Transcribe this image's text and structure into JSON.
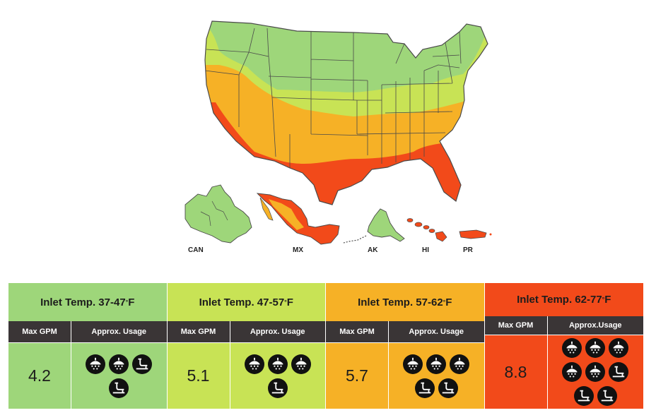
{
  "map": {
    "labels": {
      "can": "CAN",
      "mx": "MX",
      "ak": "AK",
      "hi": "HI",
      "pr": "PR"
    },
    "colors": {
      "zone1": "#9ed67a",
      "zone2": "#c8e355",
      "zone3": "#f6b126",
      "zone4": "#f24a1a",
      "border": "#4a4a4a"
    }
  },
  "legend": {
    "zones": [
      {
        "prefix": "Inlet Temp. 37-47",
        "deg": "°",
        "unit": "F",
        "col1": "Max GPM",
        "col2": "Approx. Usage",
        "gpm": "4.2",
        "color": "#9ed67a",
        "icons": [
          "shower-icon",
          "shower-icon",
          "faucet-icon",
          "faucet-icon"
        ]
      },
      {
        "prefix": "Inlet Temp. 47-57",
        "deg": "°",
        "unit": "F",
        "col1": "Max GPM",
        "col2": "Approx. Usage",
        "gpm": "5.1",
        "color": "#c8e355",
        "icons": [
          "shower-icon",
          "shower-icon",
          "shower-icon",
          "faucet-icon"
        ]
      },
      {
        "prefix": "Inlet Temp. 57-62",
        "deg": "°",
        "unit": "F",
        "col1": "Max GPM",
        "col2": "Approx. Usage",
        "gpm": "5.7",
        "color": "#f6b126",
        "icons": [
          "shower-icon",
          "shower-icon",
          "shower-icon",
          "faucet-icon",
          "faucet-icon"
        ]
      },
      {
        "prefix": "Inlet Temp. 62-77",
        "deg": "°",
        "unit": "F",
        "col1": "Max GPM",
        "col2": "Approx.Usage",
        "gpm": "8.8",
        "color": "#f24a1a",
        "icons": [
          "shower-icon",
          "shower-icon",
          "shower-icon",
          "shower-icon",
          "shower-icon",
          "faucet-icon",
          "faucet-icon",
          "faucet-icon"
        ]
      }
    ]
  }
}
